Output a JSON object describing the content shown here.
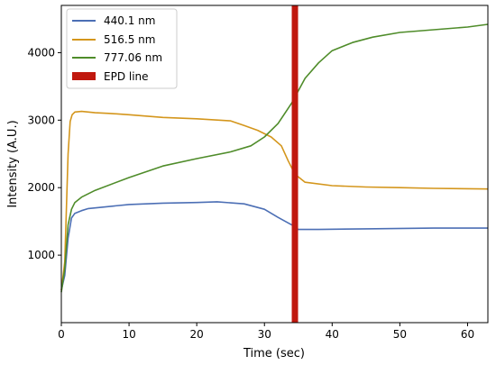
{
  "chart_data": {
    "type": "line",
    "title": "",
    "xlabel": "Time (sec)",
    "ylabel": "Intensity (A.U.)",
    "xlim": [
      0,
      63
    ],
    "ylim": [
      0,
      4700
    ],
    "xticks": [
      0,
      10,
      20,
      30,
      40,
      50,
      60
    ],
    "yticks": [
      1000,
      2000,
      3000,
      4000
    ],
    "grid": false,
    "legend_position": "top-left",
    "series": [
      {
        "name": "440.1 nm",
        "color": "#4c6fb5",
        "x": [
          0,
          0.5,
          1,
          1.5,
          2,
          3,
          4,
          6,
          10,
          15,
          20,
          23,
          27,
          30,
          32,
          34,
          35,
          38,
          45,
          55,
          63
        ],
        "y": [
          480,
          700,
          1250,
          1550,
          1620,
          1660,
          1690,
          1710,
          1750,
          1770,
          1780,
          1790,
          1760,
          1680,
          1560,
          1450,
          1380,
          1380,
          1390,
          1400,
          1400
        ]
      },
      {
        "name": "516.5 nm",
        "color": "#d4961c",
        "x": [
          0,
          0.5,
          1,
          1.3,
          1.6,
          2,
          3,
          5,
          7,
          10,
          15,
          20,
          25,
          27,
          29,
          31,
          32.5,
          33.5,
          34.5,
          36,
          40,
          45,
          50,
          55,
          63
        ],
        "y": [
          480,
          900,
          2500,
          2980,
          3080,
          3120,
          3130,
          3110,
          3100,
          3080,
          3040,
          3020,
          2990,
          2920,
          2850,
          2750,
          2620,
          2400,
          2200,
          2080,
          2030,
          2010,
          2000,
          1990,
          1980
        ]
      },
      {
        "name": "777.06 nm",
        "color": "#4f8c2a",
        "x": [
          0,
          0.5,
          1,
          1.5,
          2,
          3,
          5,
          10,
          15,
          20,
          25,
          28,
          30,
          32,
          34,
          36,
          38,
          40,
          43,
          46,
          50,
          55,
          60,
          63
        ],
        "y": [
          450,
          800,
          1450,
          1680,
          1780,
          1860,
          1960,
          2150,
          2320,
          2430,
          2530,
          2620,
          2750,
          2950,
          3250,
          3620,
          3850,
          4030,
          4150,
          4230,
          4300,
          4340,
          4380,
          4420
        ]
      }
    ],
    "vertical_band": {
      "name": "EPD line",
      "x": 34.5,
      "color": "#c0180e"
    }
  }
}
